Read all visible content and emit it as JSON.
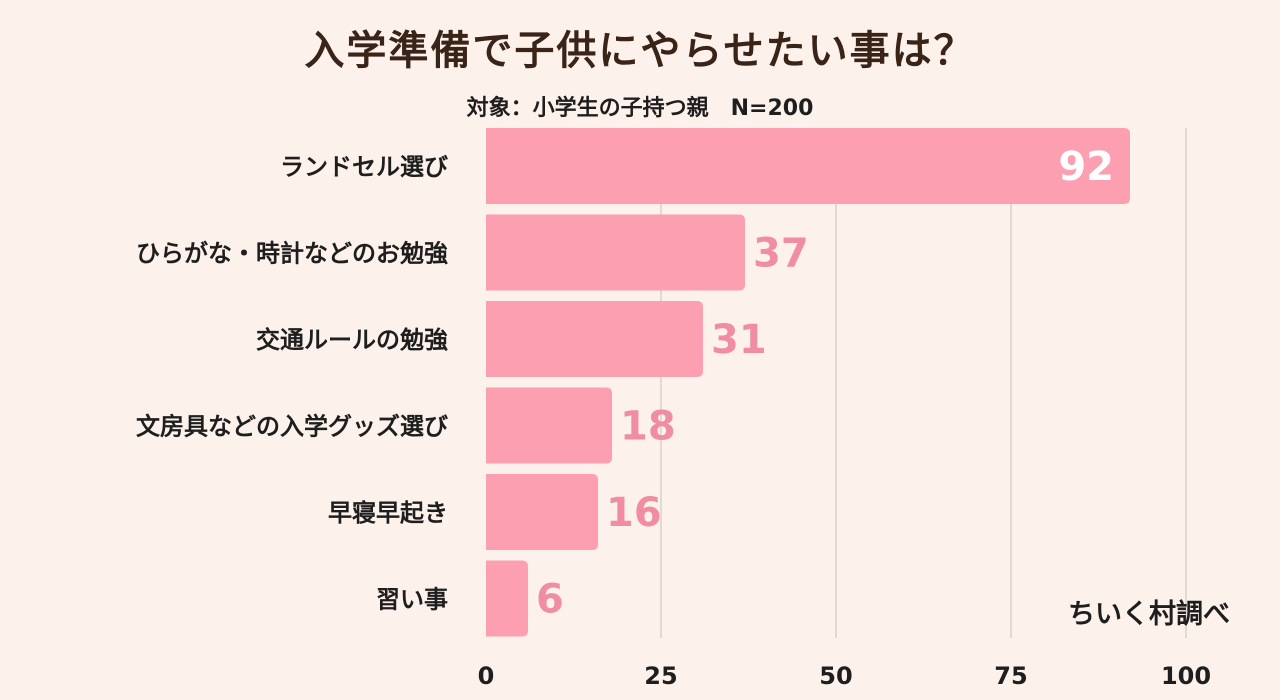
{
  "title": "入学準備で子供にやらせたい事は？",
  "subtitle": "対象：小学生の子持つ親　N=200",
  "source": "ちいく村調べ",
  "colors": {
    "bar": "#fc9fb1",
    "value_outside": "#f08da2",
    "value_inside": "#ffffff",
    "grid": "#d9d1cc",
    "background": "#fdf1ec"
  },
  "chart_data": {
    "type": "bar",
    "orientation": "horizontal",
    "categories": [
      "ランドセル選び",
      "ひらがな・時計などのお勉強",
      "交通ルールの勉強",
      "文房具などの入学グッズ選び",
      "早寝早起き",
      "習い事"
    ],
    "values": [
      92,
      37,
      31,
      18,
      16,
      6
    ],
    "xlim": [
      0,
      100
    ],
    "xticks": [
      0,
      25,
      50,
      75,
      100
    ],
    "grid": true
  }
}
